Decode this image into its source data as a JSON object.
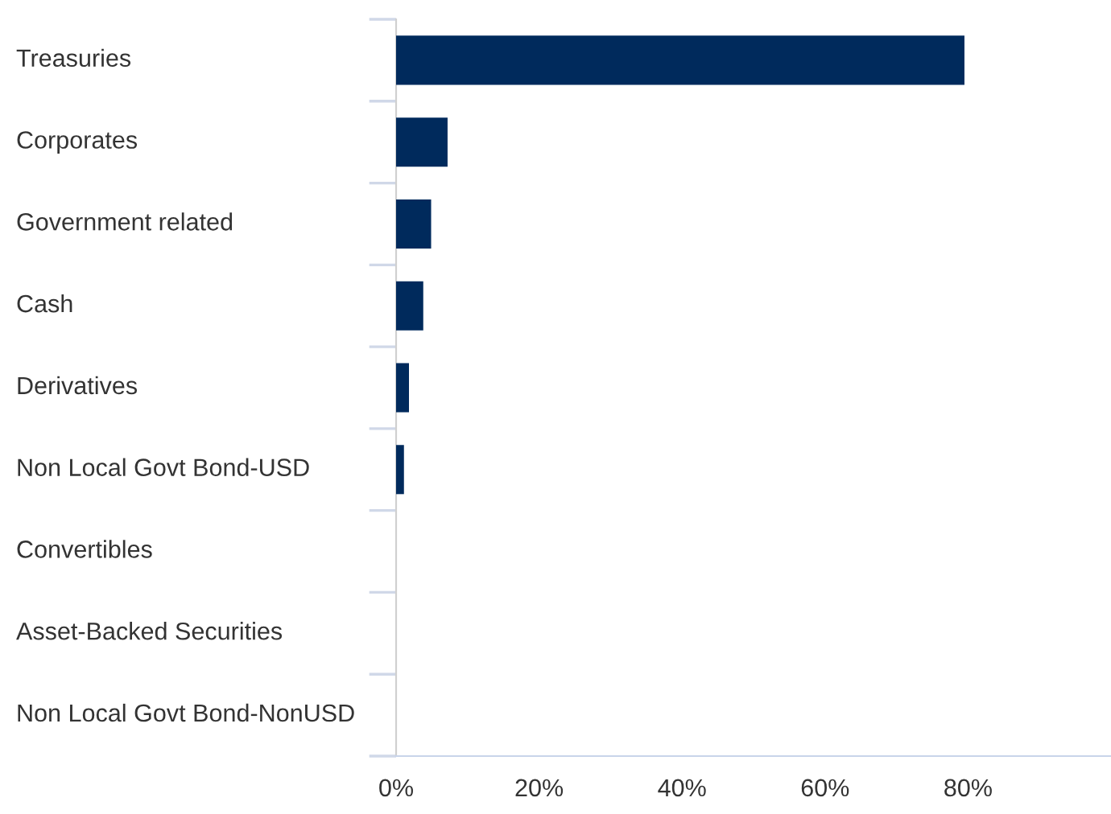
{
  "chart_data": {
    "type": "bar",
    "orientation": "horizontal",
    "categories": [
      "Treasuries",
      "Corporates",
      "Government related",
      "Cash",
      "Derivatives",
      "Non Local Govt Bond-USD",
      "Convertibles",
      "Asset-Backed Securities",
      "Non Local Govt Bond-NonUSD"
    ],
    "values": [
      79.5,
      7.2,
      4.9,
      3.8,
      1.8,
      1.1,
      0,
      0,
      0
    ],
    "color": "#002a5c",
    "xlim": [
      0,
      100
    ],
    "xticks": [
      {
        "value": 0,
        "label": "0%"
      },
      {
        "value": 20,
        "label": "20%"
      },
      {
        "value": 40,
        "label": "40%"
      },
      {
        "value": 60,
        "label": "60%"
      },
      {
        "value": 80,
        "label": "80%"
      }
    ],
    "grid": false
  }
}
